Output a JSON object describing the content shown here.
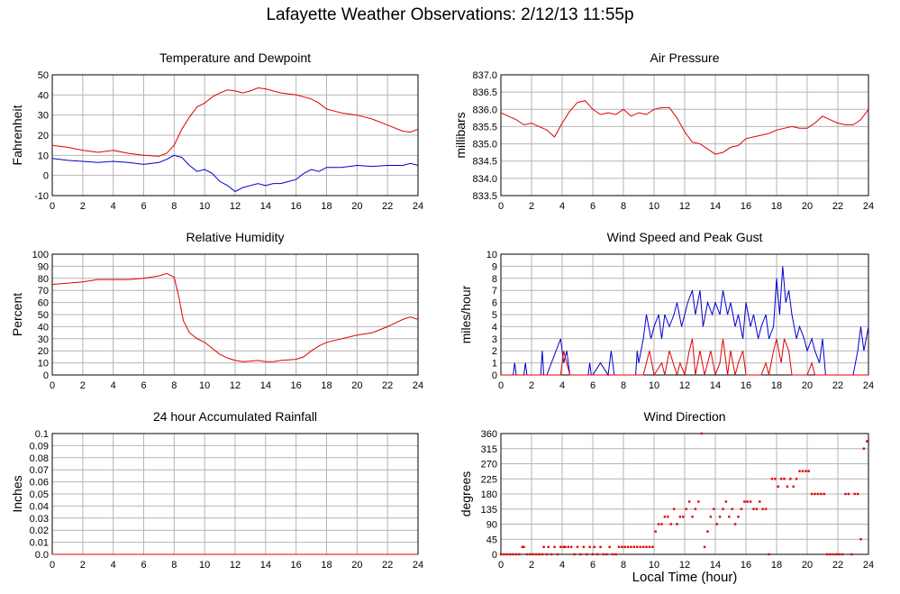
{
  "page": {
    "title": "Lafayette Weather Observations: 2/12/13 11:55p",
    "xlabel": "Local Time (hour)"
  },
  "colors": {
    "red": "#e00000",
    "blue": "#0000d0",
    "grid": "#b4b4b4",
    "frame": "#000000"
  },
  "chart_data": [
    {
      "id": "temp",
      "type": "line",
      "title": "Temperature and Dewpoint",
      "ylabel": "Fahrenheit",
      "xlim": [
        0,
        24
      ],
      "ylim": [
        -10,
        50
      ],
      "xticks": [
        0,
        2,
        4,
        6,
        8,
        10,
        12,
        14,
        16,
        18,
        20,
        22,
        24
      ],
      "yticks": [
        -10,
        0,
        10,
        20,
        30,
        40,
        50
      ],
      "ytick_labels": [
        "-10",
        "0",
        "10",
        "20",
        "30",
        "40",
        "50"
      ],
      "grid": true,
      "series": [
        {
          "color": "red",
          "x": [
            0,
            1,
            2,
            3,
            4,
            5,
            6,
            7,
            7.5,
            8,
            8.5,
            9,
            9.5,
            10,
            10.5,
            11,
            11.5,
            12,
            12.5,
            13,
            13.5,
            14,
            14.5,
            15,
            16,
            17,
            17.5,
            18,
            18.5,
            19,
            20,
            21,
            22,
            23,
            23.5,
            24
          ],
          "y": [
            15,
            14,
            12.5,
            11.5,
            12.5,
            11,
            10,
            9.5,
            11,
            15,
            23,
            29,
            34,
            36,
            39,
            41,
            42.5,
            42,
            41,
            42,
            43.5,
            43,
            42,
            41,
            40,
            38,
            36,
            33,
            32,
            31,
            30,
            28,
            25,
            22,
            21.5,
            23
          ]
        },
        {
          "color": "blue",
          "x": [
            0,
            1,
            2,
            3,
            4,
            5,
            6,
            7,
            7.5,
            8,
            8.5,
            9,
            9.5,
            10,
            10.5,
            11,
            11.5,
            12,
            12.5,
            13,
            13.5,
            14,
            14.5,
            15,
            15.5,
            16,
            16.5,
            17,
            17.5,
            18,
            19,
            20,
            21,
            22,
            23,
            23.5,
            24
          ],
          "y": [
            8.5,
            7.5,
            7,
            6.5,
            7,
            6.5,
            5.5,
            6.5,
            8,
            10,
            9,
            5,
            2,
            3,
            1,
            -3,
            -5,
            -8,
            -6,
            -5,
            -4,
            -5,
            -4,
            -4,
            -3,
            -2,
            1,
            3,
            2,
            4,
            4,
            5,
            4.5,
            5,
            5,
            6,
            5
          ]
        }
      ]
    },
    {
      "id": "pressure",
      "type": "line",
      "title": "Air Pressure",
      "ylabel": "millibars",
      "xlim": [
        0,
        24
      ],
      "ylim": [
        833.5,
        837.0
      ],
      "xticks": [
        0,
        2,
        4,
        6,
        8,
        10,
        12,
        14,
        16,
        18,
        20,
        22,
        24
      ],
      "yticks": [
        833.5,
        834.0,
        834.5,
        835.0,
        835.5,
        836.0,
        836.5,
        837.0
      ],
      "ytick_labels": [
        "833.5",
        "834.0",
        "834.5",
        "835.0",
        "835.5",
        "836.0",
        "836.5",
        "837.0"
      ],
      "grid": true,
      "series": [
        {
          "color": "red",
          "x": [
            0,
            0.5,
            1,
            1.5,
            2,
            2.5,
            3,
            3.5,
            4,
            4.5,
            5,
            5.5,
            6,
            6.5,
            7,
            7.5,
            8,
            8.5,
            9,
            9.5,
            10,
            10.5,
            11,
            11.5,
            12,
            12.5,
            13,
            13.5,
            14,
            14.5,
            15,
            15.5,
            16,
            16.5,
            17,
            17.5,
            18,
            18.5,
            19,
            19.5,
            20,
            20.5,
            21,
            21.5,
            22,
            22.5,
            23,
            23.5,
            24
          ],
          "y": [
            835.9,
            835.8,
            835.7,
            835.55,
            835.6,
            835.5,
            835.4,
            835.2,
            835.6,
            835.95,
            836.2,
            836.25,
            836.0,
            835.85,
            835.9,
            835.85,
            836.0,
            835.8,
            835.9,
            835.85,
            836.0,
            836.05,
            836.05,
            835.75,
            835.35,
            835.05,
            835.0,
            834.85,
            834.7,
            834.75,
            834.9,
            834.95,
            835.15,
            835.2,
            835.25,
            835.3,
            835.4,
            835.45,
            835.5,
            835.45,
            835.45,
            835.6,
            835.8,
            835.7,
            835.6,
            835.55,
            835.55,
            835.7,
            836.0
          ]
        }
      ]
    },
    {
      "id": "humidity",
      "type": "line",
      "title": "Relative Humidity",
      "ylabel": "Percent",
      "xlim": [
        0,
        24
      ],
      "ylim": [
        0,
        100
      ],
      "xticks": [
        0,
        2,
        4,
        6,
        8,
        10,
        12,
        14,
        16,
        18,
        20,
        22,
        24
      ],
      "yticks": [
        0,
        10,
        20,
        30,
        40,
        50,
        60,
        70,
        80,
        90,
        100
      ],
      "ytick_labels": [
        "0",
        "10",
        "20",
        "30",
        "40",
        "50",
        "60",
        "70",
        "80",
        "90",
        "100"
      ],
      "grid": true,
      "series": [
        {
          "color": "red",
          "x": [
            0,
            1,
            2,
            3,
            4,
            5,
            6,
            7,
            7.5,
            8,
            8.3,
            8.6,
            9,
            9.5,
            10,
            10.5,
            11,
            11.5,
            12,
            12.5,
            13,
            13.5,
            14,
            14.5,
            15,
            16,
            16.5,
            17,
            17.5,
            18,
            19,
            20,
            21,
            22,
            23,
            23.5,
            24
          ],
          "y": [
            75,
            76,
            77,
            79,
            79,
            79,
            80,
            82,
            84,
            81,
            65,
            45,
            35,
            30,
            27,
            22,
            17,
            14,
            12,
            11,
            11.5,
            12,
            11,
            11,
            12,
            13,
            15,
            20,
            24,
            27,
            30,
            33,
            35,
            40,
            46,
            48,
            46
          ]
        }
      ]
    },
    {
      "id": "wind",
      "type": "line",
      "title": "Wind Speed and Peak Gust",
      "ylabel": "miles/hour",
      "xlim": [
        0,
        24
      ],
      "ylim": [
        0,
        10
      ],
      "xticks": [
        0,
        2,
        4,
        6,
        8,
        10,
        12,
        14,
        16,
        18,
        20,
        22,
        24
      ],
      "yticks": [
        0,
        1,
        2,
        3,
        4,
        5,
        6,
        7,
        8,
        9,
        10
      ],
      "ytick_labels": [
        "0",
        "1",
        "2",
        "3",
        "4",
        "5",
        "6",
        "7",
        "8",
        "9",
        "10"
      ],
      "grid": true,
      "series": [
        {
          "color": "blue",
          "x": [
            0,
            0.8,
            0.9,
            1,
            1.5,
            1.6,
            1.7,
            2,
            2.6,
            2.7,
            2.8,
            3,
            3.9,
            4.1,
            4.3,
            4.5,
            5,
            5.7,
            5.8,
            5.9,
            6,
            6.5,
            7,
            7.2,
            7.3,
            7.4,
            8,
            8.8,
            8.9,
            9,
            9.3,
            9.5,
            9.8,
            10,
            10.3,
            10.5,
            10.7,
            11,
            11.3,
            11.5,
            11.8,
            12,
            12.2,
            12.5,
            12.7,
            13,
            13.2,
            13.5,
            13.8,
            14,
            14.3,
            14.5,
            14.8,
            15,
            15.3,
            15.5,
            15.8,
            16,
            16.3,
            16.5,
            16.8,
            17,
            17.3,
            17.5,
            17.8,
            18,
            18.2,
            18.4,
            18.6,
            18.8,
            19,
            19.3,
            19.5,
            19.8,
            20,
            20.3,
            20.5,
            20.8,
            21,
            21.2,
            21.5,
            22,
            22.8,
            23,
            23.3,
            23.5,
            23.7,
            24
          ],
          "y": [
            0,
            0,
            1,
            0,
            0,
            1,
            0,
            0,
            0,
            2,
            0,
            0,
            3,
            1,
            2,
            0,
            0,
            0,
            1,
            0,
            0,
            1,
            0,
            2,
            1,
            0,
            0,
            0,
            2,
            1,
            3,
            5,
            3,
            4,
            5,
            3,
            5,
            4,
            5,
            6,
            4,
            5,
            6,
            7,
            5,
            7,
            4,
            6,
            5,
            6,
            5,
            7,
            5,
            6,
            4,
            5,
            3,
            6,
            4,
            5,
            3,
            4,
            5,
            3,
            4,
            8,
            5,
            9,
            6,
            7,
            5,
            3,
            4,
            3,
            2,
            3,
            2,
            1,
            3,
            0,
            0,
            0,
            0,
            0,
            2,
            4,
            2,
            4
          ]
        },
        {
          "color": "red",
          "x": [
            0,
            3.9,
            4.1,
            4.3,
            4.5,
            8.5,
            9.3,
            9.5,
            9.7,
            10,
            10.5,
            10.7,
            11,
            11.5,
            11.7,
            12,
            12.3,
            12.5,
            12.7,
            13,
            13.3,
            13.5,
            13.7,
            14,
            14.3,
            14.5,
            14.8,
            15,
            15.3,
            15.5,
            15.8,
            16,
            16.5,
            17,
            17.3,
            17.5,
            17.8,
            18,
            18.3,
            18.5,
            18.8,
            19,
            19.5,
            20,
            20.3,
            20.5,
            21,
            24
          ],
          "y": [
            0,
            0,
            2,
            1,
            0,
            0,
            0,
            1,
            2,
            0,
            1,
            0,
            2,
            0,
            1,
            0,
            2,
            3,
            0,
            2,
            0,
            1,
            2,
            0,
            1,
            3,
            0,
            2,
            0,
            1,
            2,
            0,
            0,
            0,
            1,
            0,
            2,
            3,
            1,
            3,
            2,
            0,
            0,
            0,
            1,
            0,
            0,
            0
          ]
        }
      ]
    },
    {
      "id": "rain",
      "type": "line",
      "title": "24 hour Accumulated Rainfall",
      "ylabel": "Inches",
      "xlim": [
        0,
        24
      ],
      "ylim": [
        0,
        0.1
      ],
      "xticks": [
        0,
        2,
        4,
        6,
        8,
        10,
        12,
        14,
        16,
        18,
        20,
        22,
        24
      ],
      "yticks": [
        0,
        0.01,
        0.02,
        0.03,
        0.04,
        0.05,
        0.06,
        0.07,
        0.08,
        0.09,
        0.1
      ],
      "ytick_labels": [
        "0.0",
        "0.01",
        "0.02",
        "0.03",
        "0.04",
        "0.05",
        "0.06",
        "0.07",
        "0.08",
        "0.09",
        "0.1"
      ],
      "grid": true,
      "series": [
        {
          "color": "red",
          "x": [
            0,
            24
          ],
          "y": [
            0,
            0
          ]
        }
      ]
    },
    {
      "id": "direction",
      "type": "scatter",
      "title": "Wind Direction",
      "ylabel": "degrees",
      "xlim": [
        0,
        24
      ],
      "ylim": [
        0,
        360
      ],
      "xticks": [
        0,
        2,
        4,
        6,
        8,
        10,
        12,
        14,
        16,
        18,
        20,
        22,
        24
      ],
      "yticks": [
        0,
        45,
        90,
        135,
        180,
        225,
        270,
        315,
        360
      ],
      "ytick_labels": [
        "0",
        "45",
        "90",
        "135",
        "180",
        "225",
        "270",
        "315",
        "360"
      ],
      "grid": true,
      "series": [
        {
          "color": "red",
          "x": [
            0,
            0.2,
            0.4,
            0.6,
            0.8,
            1.0,
            1.2,
            1.4,
            1.5,
            1.7,
            1.9,
            2.1,
            2.3,
            2.5,
            2.7,
            2.8,
            3.0,
            3.1,
            3.3,
            3.5,
            3.7,
            3.9,
            4.1,
            4.2,
            4.4,
            4.6,
            4.8,
            5.0,
            5.2,
            5.4,
            5.6,
            5.8,
            6.0,
            6.1,
            6.3,
            6.5,
            6.7,
            6.9,
            7.1,
            7.3,
            7.5,
            7.7,
            7.9,
            8.1,
            8.3,
            8.5,
            8.7,
            8.9,
            9.1,
            9.3,
            9.5,
            9.7,
            9.9,
            10.1,
            10.3,
            10.5,
            10.7,
            10.9,
            11.1,
            11.3,
            11.5,
            11.7,
            11.9,
            12.1,
            12.3,
            12.5,
            12.7,
            12.9,
            13.1,
            13.3,
            13.5,
            13.7,
            13.9,
            14.1,
            14.3,
            14.5,
            14.7,
            14.9,
            15.1,
            15.3,
            15.5,
            15.7,
            15.9,
            16.1,
            16.3,
            16.5,
            16.7,
            16.9,
            17.1,
            17.3,
            17.5,
            17.7,
            17.9,
            18.1,
            18.3,
            18.5,
            18.7,
            18.9,
            19.1,
            19.3,
            19.5,
            19.7,
            19.9,
            20.1,
            20.3,
            20.5,
            20.7,
            20.9,
            21.1,
            21.3,
            21.5,
            21.7,
            21.9,
            22.1,
            22.3,
            22.5,
            22.7,
            22.9,
            23.1,
            23.3,
            23.5,
            23.7,
            23.9
          ],
          "y": [
            0,
            0,
            0,
            0,
            0,
            0,
            0,
            22,
            22,
            0,
            0,
            0,
            0,
            0,
            0,
            22,
            0,
            22,
            0,
            22,
            0,
            22,
            22,
            22,
            22,
            22,
            0,
            22,
            0,
            22,
            0,
            22,
            0,
            22,
            0,
            22,
            0,
            0,
            22,
            0,
            0,
            22,
            22,
            22,
            22,
            22,
            22,
            22,
            22,
            22,
            22,
            22,
            22,
            68,
            90,
            90,
            112,
            112,
            90,
            135,
            90,
            112,
            112,
            135,
            157,
            112,
            135,
            157,
            360,
            22,
            68,
            112,
            135,
            90,
            112,
            135,
            157,
            112,
            135,
            90,
            112,
            135,
            157,
            157,
            157,
            135,
            135,
            157,
            135,
            135,
            0,
            225,
            225,
            202,
            225,
            225,
            202,
            225,
            202,
            225,
            248,
            248,
            248,
            248,
            180,
            180,
            180,
            180,
            180,
            0,
            0,
            0,
            0,
            0,
            0,
            180,
            180,
            0,
            180,
            180,
            45,
            315,
            337
          ]
        }
      ]
    }
  ]
}
